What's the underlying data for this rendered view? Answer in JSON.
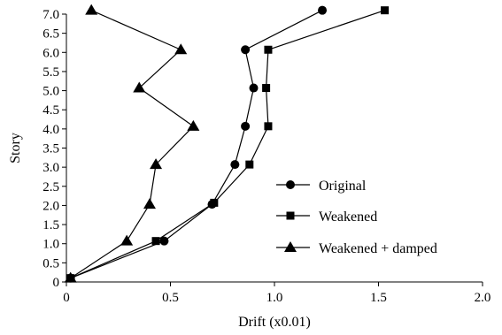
{
  "chart_data": {
    "type": "line",
    "xlabel": "Drift (x0.01)",
    "ylabel": "Story",
    "xlim": [
      0,
      2.0
    ],
    "ylim": [
      0,
      7.0
    ],
    "x_ticks": [
      "0",
      "0.5",
      "1.0",
      "1.5",
      "2.0"
    ],
    "x_tick_values": [
      0,
      0.5,
      1.0,
      1.5,
      2.0
    ],
    "y_ticks": [
      "0",
      "0.5",
      "1.0",
      "1.5",
      "2.0",
      "2.5",
      "3.0",
      "3.5",
      "4.0",
      "4.5",
      "5.0",
      "5.5",
      "6.0",
      "6.5",
      "7.0"
    ],
    "y_tick_values": [
      0,
      0.5,
      1.0,
      1.5,
      2.0,
      2.5,
      3.0,
      3.5,
      4.0,
      4.5,
      5.0,
      5.5,
      6.0,
      6.5,
      7.0
    ],
    "grid": false,
    "legend_position": "right",
    "series": [
      {
        "name": "Original",
        "marker": "circle",
        "points": [
          [
            0.02,
            0.1
          ],
          [
            0.47,
            1.07
          ],
          [
            0.7,
            2.03
          ],
          [
            0.81,
            3.07
          ],
          [
            0.86,
            4.07
          ],
          [
            0.9,
            5.07
          ],
          [
            0.86,
            6.07
          ],
          [
            1.23,
            7.1
          ]
        ]
      },
      {
        "name": "Weakened",
        "marker": "square",
        "points": [
          [
            0.02,
            0.1
          ],
          [
            0.43,
            1.07
          ],
          [
            0.71,
            2.07
          ],
          [
            0.88,
            3.07
          ],
          [
            0.97,
            4.07
          ],
          [
            0.96,
            5.07
          ],
          [
            0.97,
            6.07
          ],
          [
            1.53,
            7.1
          ]
        ]
      },
      {
        "name": "Weakened + damped",
        "marker": "triangle",
        "points": [
          [
            0.02,
            0.1
          ],
          [
            0.29,
            1.07
          ],
          [
            0.4,
            2.03
          ],
          [
            0.43,
            3.07
          ],
          [
            0.61,
            4.07
          ],
          [
            0.35,
            5.07
          ],
          [
            0.55,
            6.07
          ],
          [
            0.12,
            7.1
          ]
        ]
      }
    ],
    "colors": {
      "line": "#000000",
      "marker": "#000000"
    }
  }
}
